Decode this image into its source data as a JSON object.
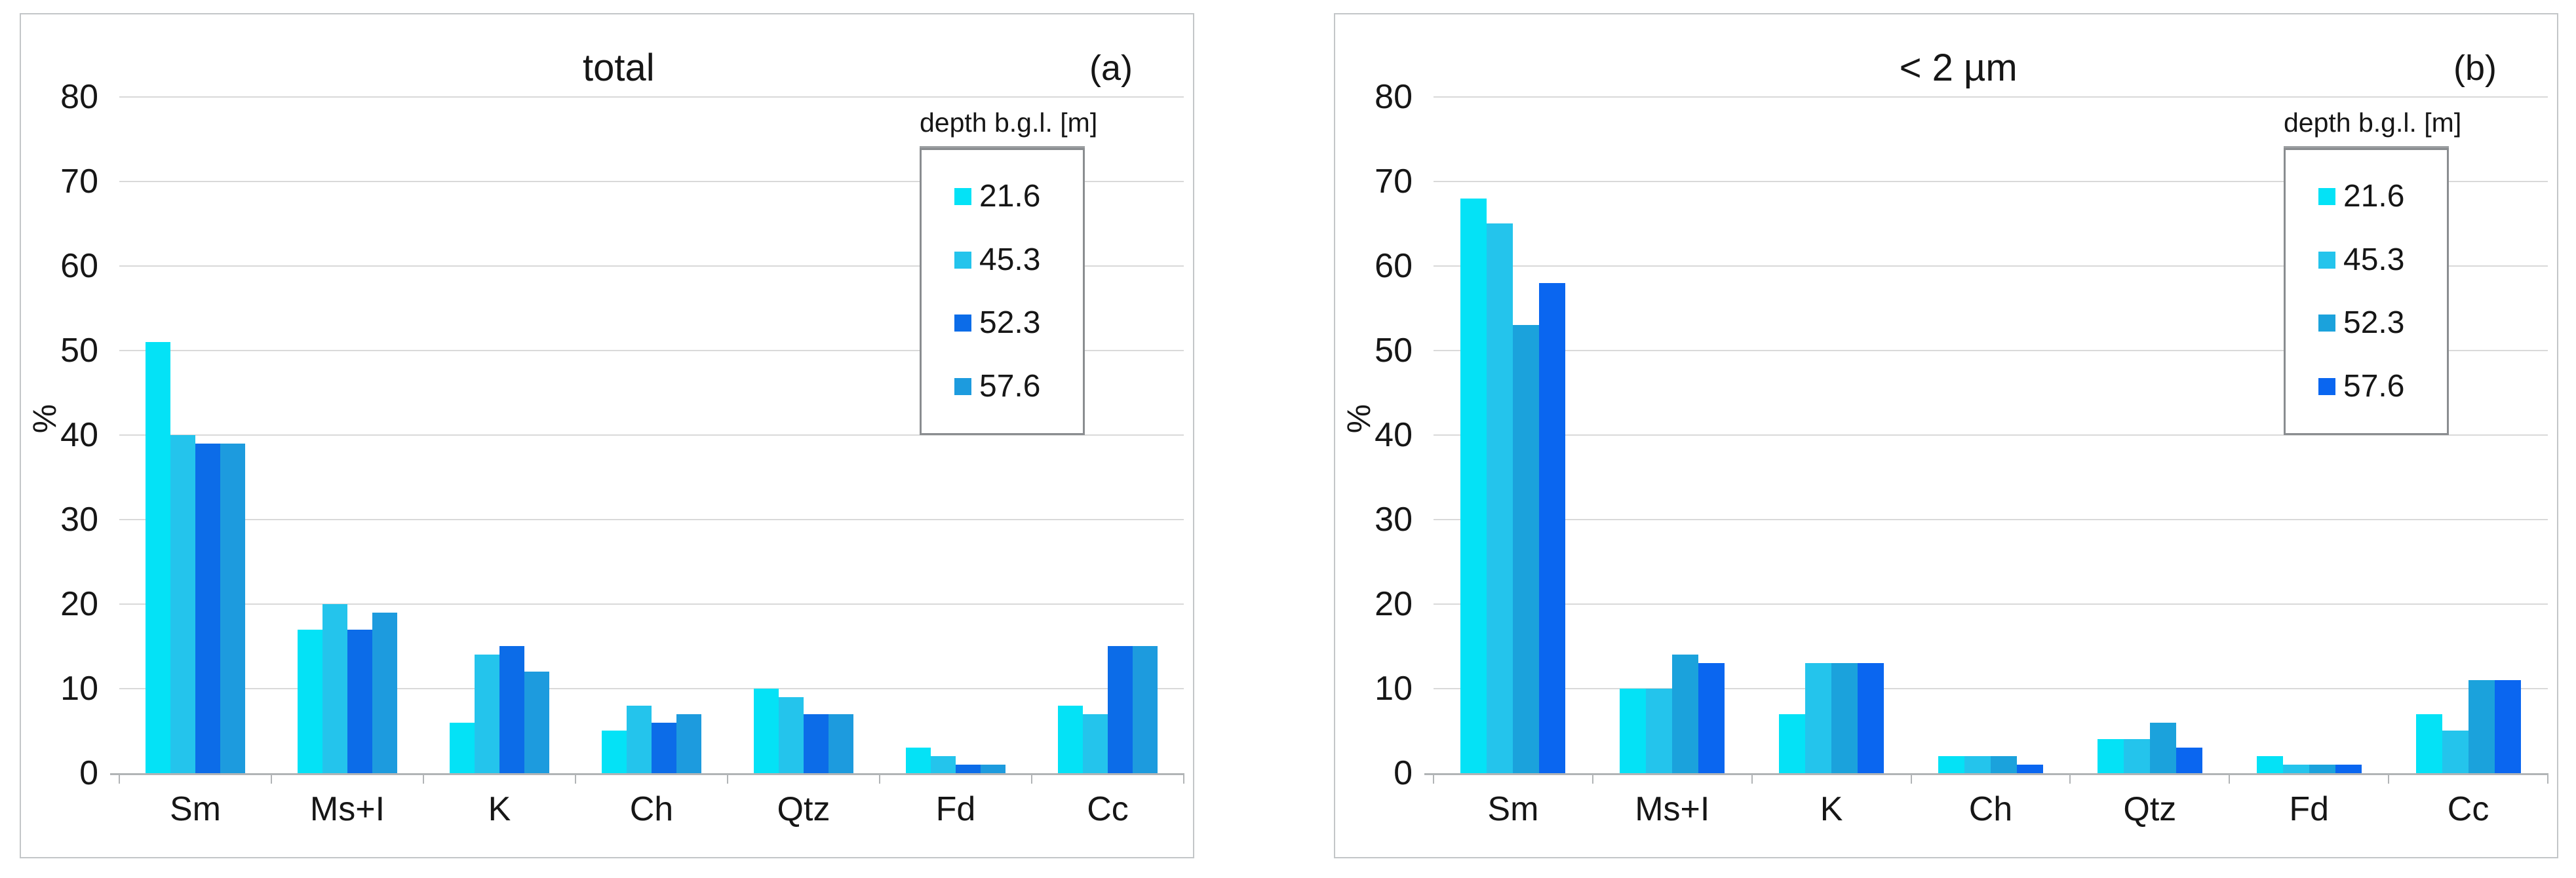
{
  "figure": {
    "background": "#ffffff",
    "gridline_color": "#d9d9d9",
    "axis_color": "#b1b4b6"
  },
  "chart_data": [
    {
      "type": "bar",
      "title": "total",
      "panel_label": "(a)",
      "ylabel": "%",
      "ylim": [
        0,
        80
      ],
      "yticks": [
        0,
        10,
        20,
        30,
        40,
        50,
        60,
        70,
        80
      ],
      "grid": "horizontal",
      "legend_title": "depth b.g.l. [m]",
      "legend_position": "upper right",
      "categories": [
        "Sm",
        "Ms+I",
        "K",
        "Ch",
        "Qtz",
        "Fd",
        "Cc"
      ],
      "series": [
        {
          "name": "21.6",
          "color": "#04e2f6",
          "values": [
            51,
            17,
            6,
            5,
            10,
            3,
            8
          ]
        },
        {
          "name": "45.3",
          "color": "#24c4ec",
          "values": [
            40,
            20,
            14,
            8,
            9,
            2,
            7
          ]
        },
        {
          "name": "52.3",
          "color": "#0c6ce8",
          "values": [
            39,
            17,
            15,
            6,
            7,
            1,
            15
          ]
        },
        {
          "name": "57.6",
          "color": "#1d9bde",
          "values": [
            39,
            19,
            12,
            7,
            7,
            1,
            15
          ]
        }
      ]
    },
    {
      "type": "bar",
      "title": "< 2 µm",
      "panel_label": "(b)",
      "ylabel": "%",
      "ylim": [
        0,
        80
      ],
      "yticks": [
        0,
        10,
        20,
        30,
        40,
        50,
        60,
        70,
        80
      ],
      "grid": "horizontal",
      "legend_title": "depth b.g.l. [m]",
      "legend_position": "upper right",
      "categories": [
        "Sm",
        "Ms+I",
        "K",
        "Ch",
        "Qtz",
        "Fd",
        "Cc"
      ],
      "series": [
        {
          "name": "21.6",
          "color": "#04e2f6",
          "values": [
            68,
            10,
            7,
            2,
            4,
            2,
            7
          ]
        },
        {
          "name": "45.3",
          "color": "#24c4ec",
          "values": [
            65,
            10,
            13,
            2,
            4,
            1,
            5
          ]
        },
        {
          "name": "52.3",
          "color": "#1ba2dc",
          "values": [
            53,
            14,
            13,
            2,
            6,
            1,
            11
          ]
        },
        {
          "name": "57.6",
          "color": "#0a66f0",
          "values": [
            58,
            13,
            13,
            1,
            3,
            1,
            11
          ]
        }
      ]
    }
  ]
}
